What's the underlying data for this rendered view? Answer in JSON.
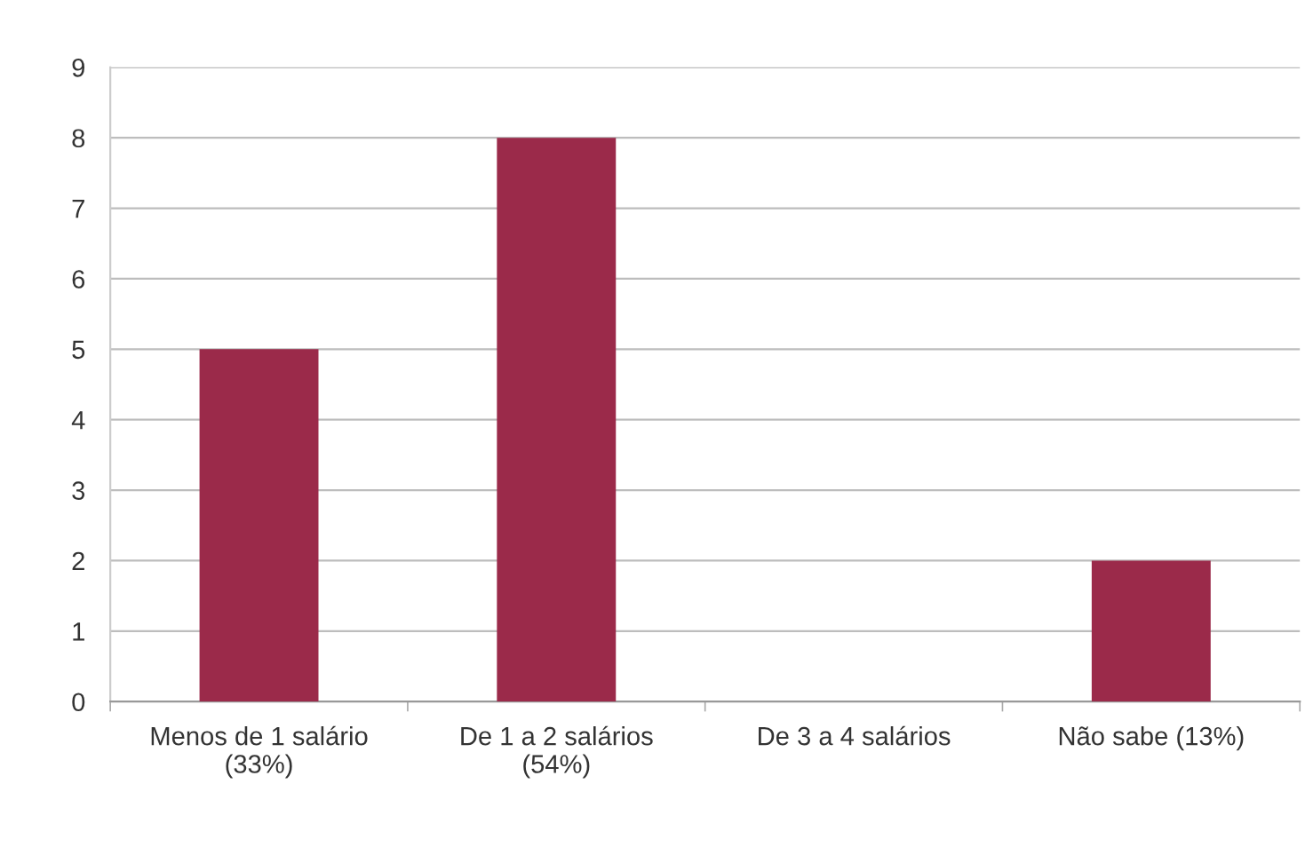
{
  "chart_data": {
    "type": "bar",
    "categories": [
      "Menos de 1 salário\n(33%)",
      "De 1 a 2 salários\n(54%)",
      "De 3 a 4 salários",
      "Não sabe (13%)"
    ],
    "values": [
      5,
      8,
      0,
      2
    ],
    "color": "#9b2a4a",
    "ylim": [
      0,
      9
    ],
    "yticks": [
      0,
      1,
      2,
      3,
      4,
      5,
      6,
      7,
      8,
      9
    ],
    "grid": "y"
  }
}
